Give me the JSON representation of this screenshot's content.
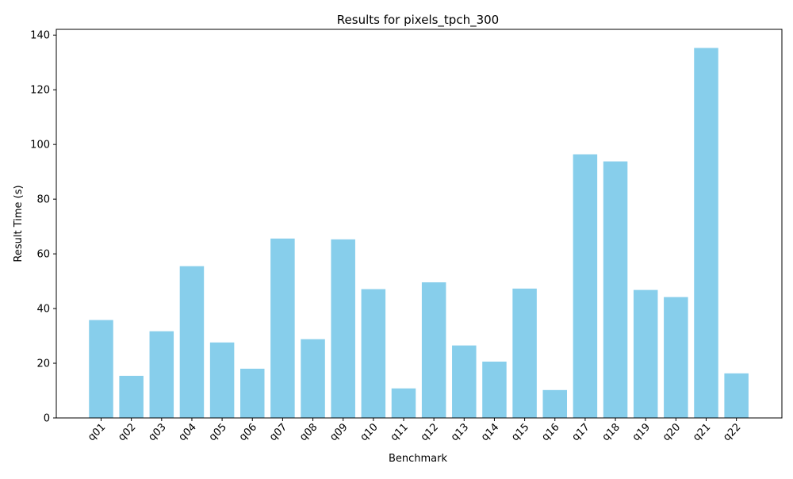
{
  "chart_data": {
    "type": "bar",
    "title": "Results for pixels_tpch_300",
    "xlabel": "Benchmark",
    "ylabel": "Result Time (s)",
    "categories": [
      "q01",
      "q02",
      "q03",
      "q04",
      "q05",
      "q06",
      "q07",
      "q08",
      "q09",
      "q10",
      "q11",
      "q12",
      "q13",
      "q14",
      "q15",
      "q16",
      "q17",
      "q18",
      "q19",
      "q20",
      "q21",
      "q22"
    ],
    "values": [
      35.8,
      15.4,
      31.7,
      55.5,
      27.6,
      18.0,
      65.6,
      28.8,
      65.3,
      47.1,
      10.8,
      49.6,
      26.5,
      20.6,
      47.3,
      10.2,
      96.4,
      93.8,
      46.8,
      44.2,
      135.3,
      16.3
    ],
    "ylim": [
      0,
      142.1
    ],
    "yticks": [
      0,
      20,
      40,
      60,
      80,
      100,
      120,
      140
    ],
    "bar_color": "#87CEEB",
    "grid": false,
    "legend": "none"
  }
}
